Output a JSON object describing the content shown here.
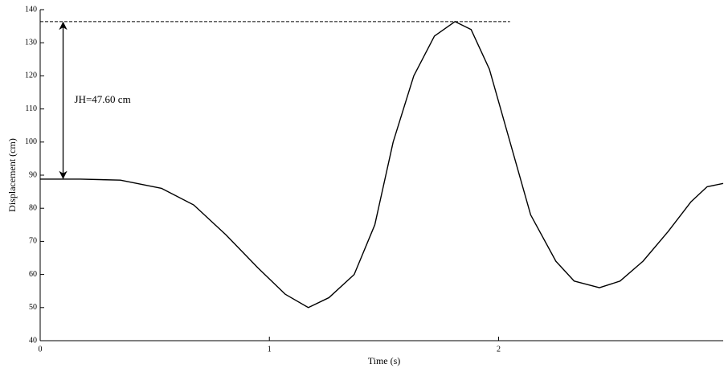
{
  "chart_data": {
    "type": "line",
    "x_label": "Time (s)",
    "y_label": "Displacement (cm)",
    "x": [
      0,
      0.175,
      0.35,
      0.53,
      0.67,
      0.81,
      0.95,
      1.07,
      1.17,
      1.26,
      1.37,
      1.46,
      1.54,
      1.63,
      1.72,
      1.81,
      1.88,
      1.96,
      2.05,
      2.14,
      2.25,
      2.33,
      2.44,
      2.53,
      2.63,
      2.74,
      2.84,
      2.91,
      2.98
    ],
    "series": [
      {
        "name": null,
        "color": "#000000",
        "values": [
          88.8,
          88.8,
          88.5,
          86,
          81,
          72,
          62,
          54,
          50,
          53,
          60,
          75,
          100,
          120,
          132,
          136.4,
          134,
          122,
          100,
          78,
          64,
          58,
          56,
          58,
          64,
          73,
          82,
          86.5,
          87.5
        ]
      }
    ],
    "xlim": [
      0,
      2.98
    ],
    "ylim": [
      40,
      140
    ],
    "xticks": [
      0,
      1,
      2
    ],
    "yticks": [
      40,
      50,
      60,
      70,
      80,
      90,
      100,
      110,
      120,
      130,
      140
    ],
    "annotation": {
      "text": "JH=47.60 cm",
      "x": 0.1,
      "y_top": 136.4,
      "y_bottom": 88.8,
      "dash_x_end": 2.05
    }
  }
}
